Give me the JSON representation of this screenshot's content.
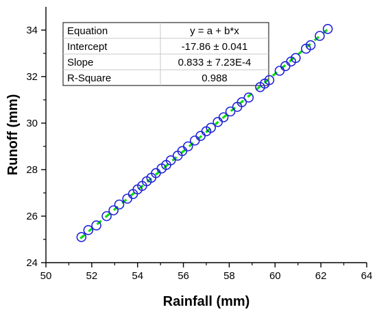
{
  "chart_data": {
    "type": "scatter",
    "title": "",
    "xlabel": "Rainfall (mm)",
    "ylabel": "Runoff (mm)",
    "xlim": [
      50,
      64
    ],
    "ylim": [
      24,
      35
    ],
    "x_ticks": [
      50,
      52,
      54,
      56,
      58,
      60,
      62,
      64
    ],
    "y_ticks": [
      24,
      26,
      28,
      30,
      32,
      34
    ],
    "grid": false,
    "legend": "none",
    "marker_color": "#1f22d6",
    "fit_line_color": "#00e000",
    "series": [
      {
        "x": [
          51.55,
          51.85,
          52.2,
          52.65,
          52.95,
          53.2,
          53.55,
          53.8,
          54.0,
          54.2,
          54.4,
          54.6,
          54.8,
          55.05,
          55.25,
          55.45,
          55.75,
          55.95,
          56.2,
          56.5,
          56.75,
          57.0,
          57.2,
          57.5,
          57.75,
          58.05,
          58.35,
          58.55,
          58.85,
          59.35,
          59.55,
          59.75,
          60.2,
          60.45,
          60.7,
          60.9,
          61.35,
          61.55,
          61.95,
          62.3
        ],
        "y": [
          25.1,
          25.4,
          25.6,
          26.0,
          26.25,
          26.5,
          26.75,
          26.95,
          27.15,
          27.3,
          27.5,
          27.65,
          27.85,
          28.05,
          28.2,
          28.4,
          28.6,
          28.8,
          29.0,
          29.25,
          29.45,
          29.65,
          29.8,
          30.05,
          30.25,
          30.5,
          30.7,
          30.9,
          31.1,
          31.55,
          31.7,
          31.85,
          32.25,
          32.45,
          32.65,
          32.8,
          33.2,
          33.35,
          33.75,
          34.05
        ]
      }
    ],
    "fit_line": {
      "x": [
        51.5,
        62.4
      ],
      "y": [
        25.04,
        34.12
      ]
    },
    "table": {
      "rows": [
        [
          "Equation",
          "y = a + b*x"
        ],
        [
          "Intercept",
          "-17.86 ± 0.041"
        ],
        [
          "Slope",
          "0.833 ± 7.23E-4"
        ],
        [
          "R-Square",
          "0.988"
        ]
      ]
    }
  }
}
